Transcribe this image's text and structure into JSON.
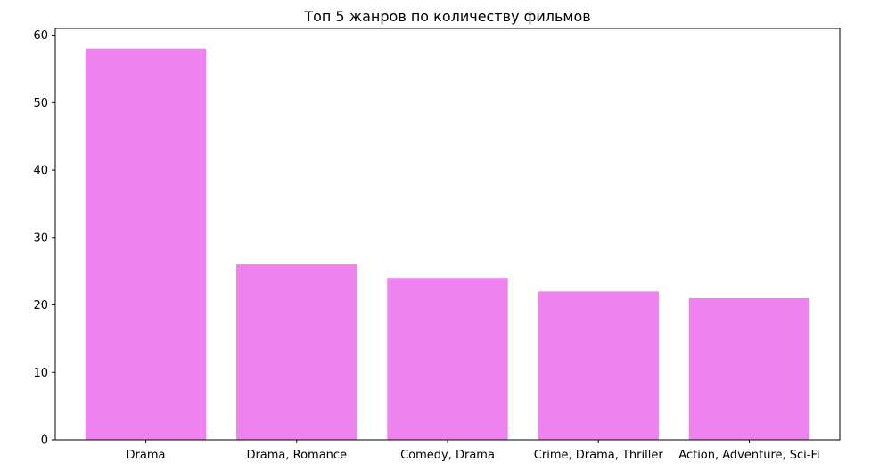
{
  "chart_data": {
    "type": "bar",
    "title": "Топ 5 жанров по количеству фильмов",
    "xlabel": "",
    "ylabel": "",
    "categories": [
      "Drama",
      "Drama, Romance",
      "Comedy, Drama",
      "Crime, Drama, Thriller",
      "Action, Adventure, Sci-Fi"
    ],
    "values": [
      58,
      26,
      24,
      22,
      21
    ],
    "ylim": [
      0,
      61
    ],
    "yticks": [
      0,
      10,
      20,
      30,
      40,
      50,
      60
    ],
    "grid": false,
    "legend": "none",
    "bar_color": "#ee82ee"
  }
}
